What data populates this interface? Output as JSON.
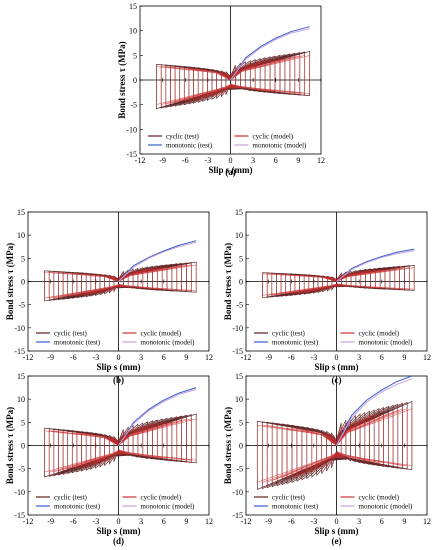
{
  "chart_data": [
    {
      "panel": "(a)",
      "type": "line",
      "xlabel": "Slip s (mm)",
      "ylabel": "Bond stress τ (MPa)",
      "xlim": [
        -12,
        12
      ],
      "ylim": [
        -15,
        15
      ],
      "xticks": [
        "-12",
        "-9",
        "-6",
        "-3",
        "0",
        "3",
        "6",
        "9",
        "12"
      ],
      "yticks": [
        "15",
        "10",
        "5",
        "0",
        "-5",
        "-10",
        "-15"
      ],
      "legend": [
        "cyclic (test)",
        "cyclic (model)",
        "monotonic (test)",
        "monotonic (model)"
      ],
      "series": [
        {
          "name": "cyclic (test)",
          "color": "#5a1f1f",
          "amplitude": 5.8,
          "xmin": -9.8,
          "xmax": 10.5
        },
        {
          "name": "cyclic (model)",
          "color": "#d03030",
          "amplitude": 5.0,
          "xmin": -9.8,
          "xmax": 10.5
        },
        {
          "name": "monotonic (test)",
          "color": "#3a5fcd",
          "x": [
            0,
            2,
            4,
            6,
            8,
            10.5
          ],
          "y": [
            0,
            4.5,
            6.8,
            8.5,
            9.8,
            10.8
          ]
        },
        {
          "name": "monotonic (model)",
          "color": "#c9a0dc",
          "x": [
            0,
            2,
            4,
            6,
            8,
            10.5
          ],
          "y": [
            0,
            4.2,
            6.5,
            8.2,
            9.5,
            10.4
          ]
        }
      ]
    },
    {
      "panel": "(b)",
      "type": "line",
      "xlabel": "Slip s (mm)",
      "ylabel": "Bond stress τ (MPa)",
      "xlim": [
        -12,
        12
      ],
      "ylim": [
        -15,
        15
      ],
      "xticks": [
        "-12",
        "-9",
        "-6",
        "-3",
        "0",
        "3",
        "6",
        "9",
        "12"
      ],
      "yticks": [
        "15",
        "10",
        "5",
        "0",
        "-5",
        "-10",
        "-15"
      ],
      "legend": [
        "cyclic (test)",
        "cyclic (model)",
        "monotonic (test)",
        "monotonic (model)"
      ],
      "series": [
        {
          "name": "cyclic (test)",
          "color": "#5a1f1f",
          "amplitude": 4.2,
          "xmin": -9.8,
          "xmax": 10.3
        },
        {
          "name": "cyclic (model)",
          "color": "#d03030",
          "amplitude": 3.6,
          "xmin": -9.8,
          "xmax": 10.3
        },
        {
          "name": "monotonic (test)",
          "color": "#3a5fcd",
          "x": [
            0,
            2,
            4,
            6,
            8,
            10.3
          ],
          "y": [
            0,
            3.4,
            5.2,
            6.6,
            7.8,
            8.8
          ]
        },
        {
          "name": "monotonic (model)",
          "color": "#c9a0dc",
          "x": [
            0,
            2,
            4,
            6,
            8,
            10.3
          ],
          "y": [
            0,
            3.1,
            5.0,
            6.4,
            7.5,
            8.5
          ]
        }
      ]
    },
    {
      "panel": "(c)",
      "type": "line",
      "xlabel": "Slip s (mm)",
      "ylabel": "Bond stress τ (MPa)",
      "xlim": [
        -12,
        12
      ],
      "ylim": [
        -15,
        15
      ],
      "xticks": [
        "-12",
        "-9",
        "-6",
        "-3",
        "0",
        "3",
        "6",
        "9",
        "12"
      ],
      "yticks": [
        "15",
        "10",
        "5",
        "0",
        "-5",
        "-10",
        "-15"
      ],
      "legend": [
        "cyclic (test)",
        "cyclic (model)",
        "monotonic (test)",
        "monotonic (model)"
      ],
      "series": [
        {
          "name": "cyclic (test)",
          "color": "#5a1f1f",
          "amplitude": 3.5,
          "xmin": -9.8,
          "xmax": 10.3
        },
        {
          "name": "cyclic (model)",
          "color": "#d03030",
          "amplitude": 3.0,
          "xmin": -9.8,
          "xmax": 10.3
        },
        {
          "name": "monotonic (test)",
          "color": "#3a5fcd",
          "x": [
            0,
            2,
            4,
            6,
            8,
            10.3
          ],
          "y": [
            0,
            2.8,
            4.3,
            5.4,
            6.3,
            7.0
          ]
        },
        {
          "name": "monotonic (model)",
          "color": "#c9a0dc",
          "x": [
            0,
            2,
            4,
            6,
            8,
            10.3
          ],
          "y": [
            0,
            2.6,
            4.1,
            5.2,
            6.0,
            6.7
          ]
        }
      ]
    },
    {
      "panel": "(d)",
      "type": "line",
      "xlabel": "Slip s (mm)",
      "ylabel": "Bond stress τ (MPa)",
      "xlim": [
        -12,
        12
      ],
      "ylim": [
        -15,
        15
      ],
      "xticks": [
        "-12",
        "-9",
        "-6",
        "-3",
        "0",
        "3",
        "6",
        "9",
        "12"
      ],
      "yticks": [
        "15",
        "10",
        "5",
        "0",
        "-5",
        "-10",
        "-15"
      ],
      "legend": [
        "cyclic (test)",
        "cyclic (model)",
        "monotonic (test)",
        "monotonic (model)"
      ],
      "series": [
        {
          "name": "cyclic (test)",
          "color": "#5a1f1f",
          "amplitude": 6.8,
          "xmin": -9.8,
          "xmax": 10.3
        },
        {
          "name": "cyclic (model)",
          "color": "#d03030",
          "amplitude": 5.8,
          "xmin": -9.8,
          "xmax": 10.3
        },
        {
          "name": "monotonic (test)",
          "color": "#3a5fcd",
          "x": [
            0,
            2,
            4,
            6,
            8,
            10.3
          ],
          "y": [
            0,
            5.0,
            7.8,
            9.8,
            11.3,
            12.5
          ]
        },
        {
          "name": "monotonic (model)",
          "color": "#c9a0dc",
          "x": [
            0,
            2,
            4,
            6,
            8,
            10.3
          ],
          "y": [
            0,
            4.7,
            7.5,
            9.5,
            11.0,
            12.1
          ]
        }
      ]
    },
    {
      "panel": "(e)",
      "type": "line",
      "xlabel": "Slip s (mm)",
      "ylabel": "Bond stress τ (MPa)",
      "xlim": [
        -12,
        12
      ],
      "ylim": [
        -15,
        15
      ],
      "xticks": [
        "-12",
        "-9",
        "-6",
        "-3",
        "0",
        "3",
        "6",
        "9",
        "12"
      ],
      "yticks": [
        "15",
        "10",
        "5",
        "0",
        "-5",
        "-10",
        "-15"
      ],
      "legend": [
        "cyclic (test)",
        "cyclic (model)",
        "monotonic (test)",
        "monotonic (model)"
      ],
      "series": [
        {
          "name": "cyclic (test)",
          "color": "#5a1f1f",
          "amplitude": 9.5,
          "xmin": -10.5,
          "xmax": 10.0
        },
        {
          "name": "cyclic (model)",
          "color": "#d03030",
          "amplitude": 8.0,
          "xmin": -10.5,
          "xmax": 10.0
        },
        {
          "name": "monotonic (test)",
          "color": "#3a5fcd",
          "x": [
            0,
            2,
            4,
            6,
            8,
            10.0
          ],
          "y": [
            0,
            6.5,
            9.8,
            12.0,
            13.8,
            15.0
          ]
        },
        {
          "name": "monotonic (model)",
          "color": "#c9a0dc",
          "x": [
            0,
            2,
            4,
            6,
            8,
            10.0
          ],
          "y": [
            0,
            6.0,
            9.3,
            11.6,
            13.2,
            14.4
          ]
        }
      ]
    }
  ]
}
